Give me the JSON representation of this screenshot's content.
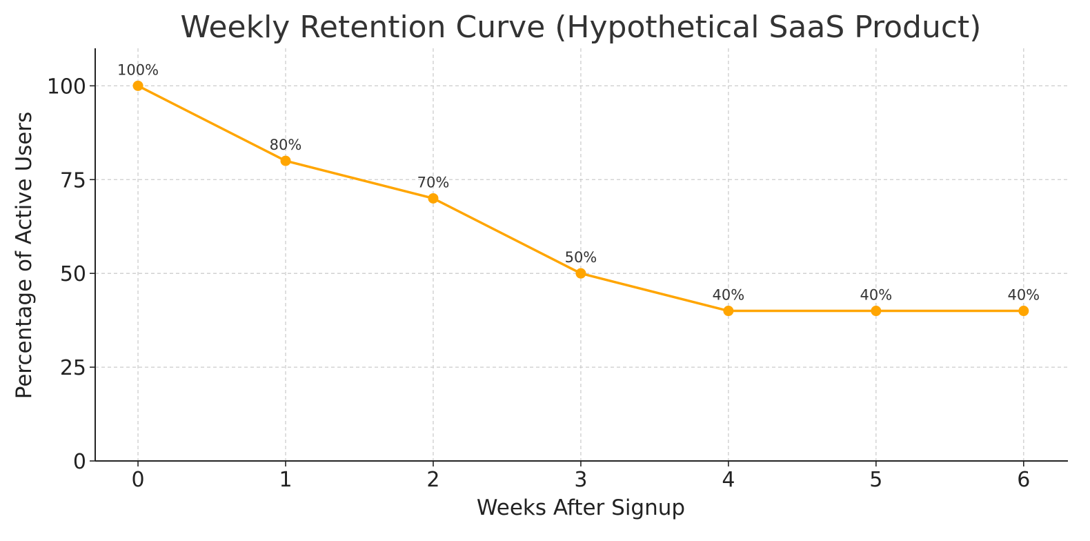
{
  "chart_data": {
    "type": "line",
    "title": "Weekly Retention Curve (Hypothetical SaaS Product)",
    "xlabel": "Weeks After Signup",
    "ylabel": "Percentage of Active Users",
    "x": [
      0,
      1,
      2,
      3,
      4,
      5,
      6
    ],
    "xlim": [
      -0.29,
      6.3
    ],
    "ylim": [
      0,
      110
    ],
    "yticks": [
      0,
      25,
      50,
      75,
      100
    ],
    "grid": true,
    "series": [
      {
        "values": [
          100,
          80,
          70,
          50,
          40,
          40,
          40
        ],
        "labels": [
          "100%",
          "80%",
          "70%",
          "50%",
          "40%",
          "40%",
          "40%"
        ],
        "color": "#FFA500",
        "marker": "circle"
      }
    ]
  }
}
